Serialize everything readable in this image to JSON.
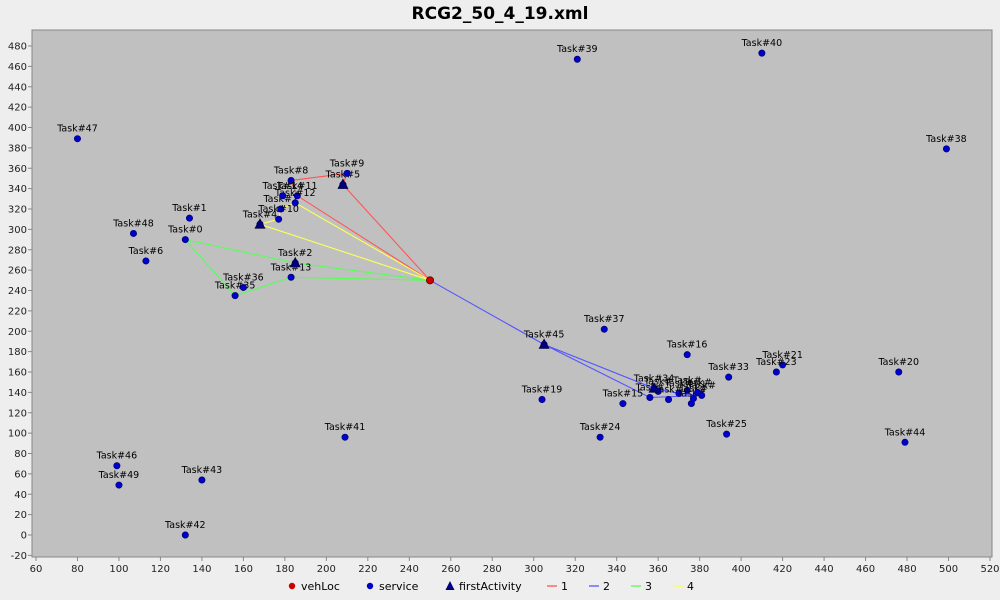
{
  "chart_data": {
    "type": "scatter",
    "title": "RCG2_50_4_19.xml",
    "xlim": [
      60,
      520
    ],
    "ylim": [
      -20,
      490
    ],
    "x_ticks": [
      60,
      80,
      100,
      120,
      140,
      160,
      180,
      200,
      220,
      240,
      260,
      280,
      300,
      320,
      340,
      360,
      380,
      400,
      420,
      440,
      460,
      480,
      500,
      520
    ],
    "y_ticks": [
      -20,
      0,
      20,
      40,
      60,
      80,
      100,
      120,
      140,
      160,
      180,
      200,
      220,
      240,
      260,
      280,
      300,
      320,
      340,
      360,
      380,
      400,
      420,
      440,
      460,
      480
    ],
    "background_color": "#c0c0c0",
    "grid": false,
    "legend_position": "bottom",
    "legend": [
      {
        "label": "vehLoc",
        "marker": "circle",
        "color": "#cc0000"
      },
      {
        "label": "service",
        "marker": "circle",
        "color": "#0000cc"
      },
      {
        "label": "firstActivity",
        "marker": "triangle",
        "color": "#000080"
      },
      {
        "label": "1",
        "marker": "line",
        "color": "#ff5555"
      },
      {
        "label": "2",
        "marker": "line",
        "color": "#5555ff"
      },
      {
        "label": "3",
        "marker": "line",
        "color": "#55ff55"
      },
      {
        "label": "4",
        "marker": "line",
        "color": "#ffff55"
      }
    ],
    "vehLoc": {
      "x": 250,
      "y": 250
    },
    "first_activities": [
      {
        "x": 208,
        "y": 344
      },
      {
        "x": 168,
        "y": 305
      },
      {
        "x": 185,
        "y": 267
      },
      {
        "x": 305,
        "y": 187
      },
      {
        "x": 358,
        "y": 144
      }
    ],
    "services": [
      {
        "label": "Task#0",
        "x": 132,
        "y": 290
      },
      {
        "label": "Task#1",
        "x": 134,
        "y": 311
      },
      {
        "label": "Task#2",
        "x": 185,
        "y": 267
      },
      {
        "label": "Task#4",
        "x": 168,
        "y": 305
      },
      {
        "label": "Task#5",
        "x": 208,
        "y": 344
      },
      {
        "label": "Task#6",
        "x": 113,
        "y": 269
      },
      {
        "label": "Task#7",
        "x": 178,
        "y": 320
      },
      {
        "label": "Task#8",
        "x": 183,
        "y": 348
      },
      {
        "label": "Task#9",
        "x": 210,
        "y": 355
      },
      {
        "label": "Task#10",
        "x": 177,
        "y": 310
      },
      {
        "label": "Task#11",
        "x": 186,
        "y": 333
      },
      {
        "label": "Task#12",
        "x": 185,
        "y": 326
      },
      {
        "label": "Task#13",
        "x": 183,
        "y": 253
      },
      {
        "label": "Task#14",
        "x": 179,
        "y": 333
      },
      {
        "label": "Task#15",
        "x": 343,
        "y": 129
      },
      {
        "label": "Task#16",
        "x": 374,
        "y": 177
      },
      {
        "label": "Task#19",
        "x": 304,
        "y": 133
      },
      {
        "label": "Task#20",
        "x": 476,
        "y": 160
      },
      {
        "label": "Task#21",
        "x": 420,
        "y": 167
      },
      {
        "label": "Task#23",
        "x": 417,
        "y": 160
      },
      {
        "label": "Task#24",
        "x": 332,
        "y": 96
      },
      {
        "label": "Task#25",
        "x": 393,
        "y": 99
      },
      {
        "label": "Task#33",
        "x": 394,
        "y": 155
      },
      {
        "label": "Task#34",
        "x": 358,
        "y": 144
      },
      {
        "label": "Task#35",
        "x": 156,
        "y": 235
      },
      {
        "label": "Task#36",
        "x": 160,
        "y": 243
      },
      {
        "label": "Task#37",
        "x": 334,
        "y": 202
      },
      {
        "label": "Task#38",
        "x": 499,
        "y": 379
      },
      {
        "label": "Task#39",
        "x": 321,
        "y": 467
      },
      {
        "label": "Task#40",
        "x": 410,
        "y": 473
      },
      {
        "label": "Task#41",
        "x": 209,
        "y": 96
      },
      {
        "label": "Task#42",
        "x": 132,
        "y": 0
      },
      {
        "label": "Task#43",
        "x": 140,
        "y": 54
      },
      {
        "label": "Task#44",
        "x": 479,
        "y": 91
      },
      {
        "label": "Task#45",
        "x": 305,
        "y": 187
      },
      {
        "label": "Task#46",
        "x": 99,
        "y": 68
      },
      {
        "label": "Task#47",
        "x": 80,
        "y": 389
      },
      {
        "label": "Task#48",
        "x": 107,
        "y": 296
      },
      {
        "label": "Task#49",
        "x": 100,
        "y": 49
      },
      {
        "label": "Task#",
        "x": 356,
        "y": 135
      },
      {
        "label": "Task#",
        "x": 360,
        "y": 141
      },
      {
        "label": "Task#",
        "x": 365,
        "y": 133
      },
      {
        "label": "Task#",
        "x": 370,
        "y": 139
      },
      {
        "label": "Task#",
        "x": 374,
        "y": 142
      },
      {
        "label": "Task#",
        "x": 376,
        "y": 129
      },
      {
        "label": "Task#",
        "x": 377,
        "y": 134
      },
      {
        "label": "Task#",
        "x": 379,
        "y": 140
      },
      {
        "label": "Task#",
        "x": 381,
        "y": 137
      }
    ],
    "routes": [
      {
        "name": "1",
        "color": "#ff5555",
        "points": [
          [
            250,
            250
          ],
          [
            186,
            333
          ],
          [
            183,
            348
          ],
          [
            210,
            355
          ],
          [
            208,
            344
          ],
          [
            250,
            250
          ]
        ]
      },
      {
        "name": "2",
        "color": "#5555ff",
        "points": [
          [
            250,
            250
          ],
          [
            305,
            187
          ],
          [
            358,
            144
          ],
          [
            370,
            139
          ],
          [
            381,
            137
          ],
          [
            356,
            135
          ],
          [
            305,
            187
          ],
          [
            250,
            250
          ]
        ]
      },
      {
        "name": "3",
        "color": "#55ff55",
        "points": [
          [
            250,
            250
          ],
          [
            185,
            267
          ],
          [
            132,
            290
          ],
          [
            156,
            235
          ],
          [
            183,
            253
          ],
          [
            250,
            250
          ]
        ]
      },
      {
        "name": "4",
        "color": "#ffff55",
        "points": [
          [
            250,
            250
          ],
          [
            168,
            305
          ],
          [
            177,
            310
          ],
          [
            178,
            320
          ],
          [
            185,
            326
          ],
          [
            250,
            250
          ]
        ]
      }
    ]
  }
}
